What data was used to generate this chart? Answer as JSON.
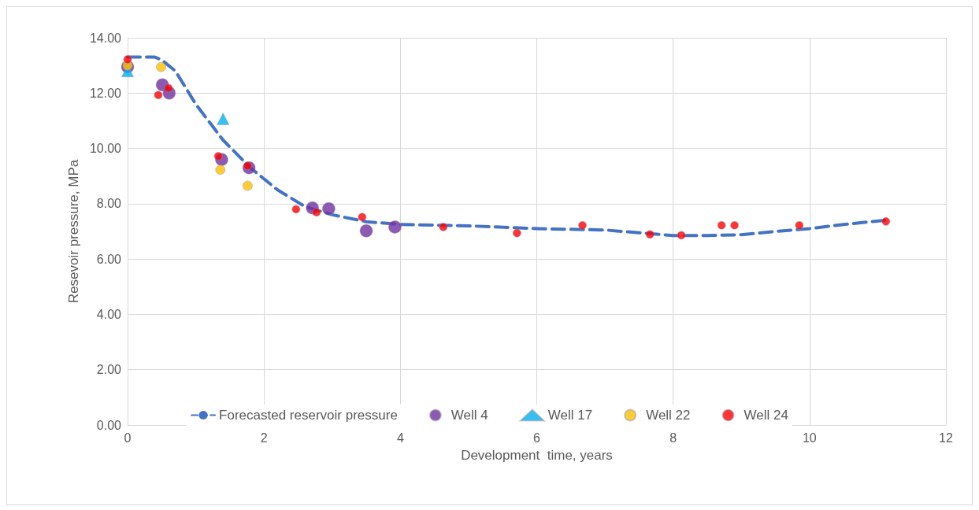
{
  "chart_data": {
    "type": "scatter",
    "xlabel": "Development  time, years",
    "ylabel": "Resevoir pressure, MPa",
    "xlim": [
      0,
      12
    ],
    "xticks": [
      0,
      2,
      4,
      6,
      8,
      10,
      12
    ],
    "ylim": [
      0,
      14
    ],
    "yticks": [
      {
        "value": 0,
        "label": "0.00"
      },
      {
        "value": 2,
        "label": "2.00"
      },
      {
        "value": 4,
        "label": "4.00"
      },
      {
        "value": 6,
        "label": "6.00"
      },
      {
        "value": 8,
        "label": "8.00"
      },
      {
        "value": 10,
        "label": "10.00"
      },
      {
        "value": 12,
        "label": "12.00"
      },
      {
        "value": 14,
        "label": "14.00"
      }
    ],
    "grid": true,
    "legend": "bottom",
    "series": [
      {
        "name": "Forecasted reservoir pressure",
        "type": "line",
        "line_style": "dashed",
        "marker": "none",
        "color": "#4472c4",
        "x": [
          0,
          0.4,
          0.5,
          0.7,
          1.0,
          1.4,
          1.8,
          2.2,
          2.6,
          3.0,
          3.5,
          4.0,
          5.0,
          6.0,
          7.0,
          7.5,
          8.0,
          8.5,
          9.0,
          9.5,
          10.0,
          10.5,
          11.1
        ],
        "values": [
          13.3,
          13.3,
          13.2,
          12.8,
          11.6,
          10.3,
          9.3,
          8.5,
          7.9,
          7.6,
          7.35,
          7.25,
          7.2,
          7.1,
          7.05,
          6.95,
          6.85,
          6.85,
          6.88,
          7.0,
          7.1,
          7.25,
          7.4
        ]
      },
      {
        "name": "Well 4",
        "marker": "circle",
        "color": "#7030a0",
        "x": [
          0,
          0.51,
          0.61,
          1.38,
          1.78,
          2.71,
          2.95,
          3.5,
          3.92
        ],
        "values": [
          12.95,
          12.3,
          12.0,
          9.6,
          9.3,
          7.85,
          7.82,
          7.02,
          7.16
        ]
      },
      {
        "name": "Well 17",
        "marker": "triangle",
        "color": "#00b0f0",
        "x": [
          0,
          1.4
        ],
        "values": [
          12.8,
          11.07
        ]
      },
      {
        "name": "Well 22",
        "marker": "circle",
        "color": "#ffc000",
        "x": [
          0,
          0.49,
          1.36,
          1.76
        ],
        "values": [
          13.0,
          12.94,
          9.23,
          8.65
        ]
      },
      {
        "name": "Well 24",
        "marker": "circle",
        "color": "#ff0000",
        "x": [
          0,
          0.45,
          0.6,
          1.33,
          1.76,
          2.47,
          2.77,
          3.44,
          4.63,
          5.71,
          6.67,
          7.66,
          8.12,
          8.71,
          8.9,
          9.85,
          11.12
        ],
        "values": [
          13.22,
          11.93,
          12.18,
          9.72,
          9.37,
          7.8,
          7.69,
          7.52,
          7.16,
          6.94,
          7.22,
          6.89,
          6.86,
          7.22,
          7.22,
          7.22,
          7.36
        ]
      }
    ]
  }
}
